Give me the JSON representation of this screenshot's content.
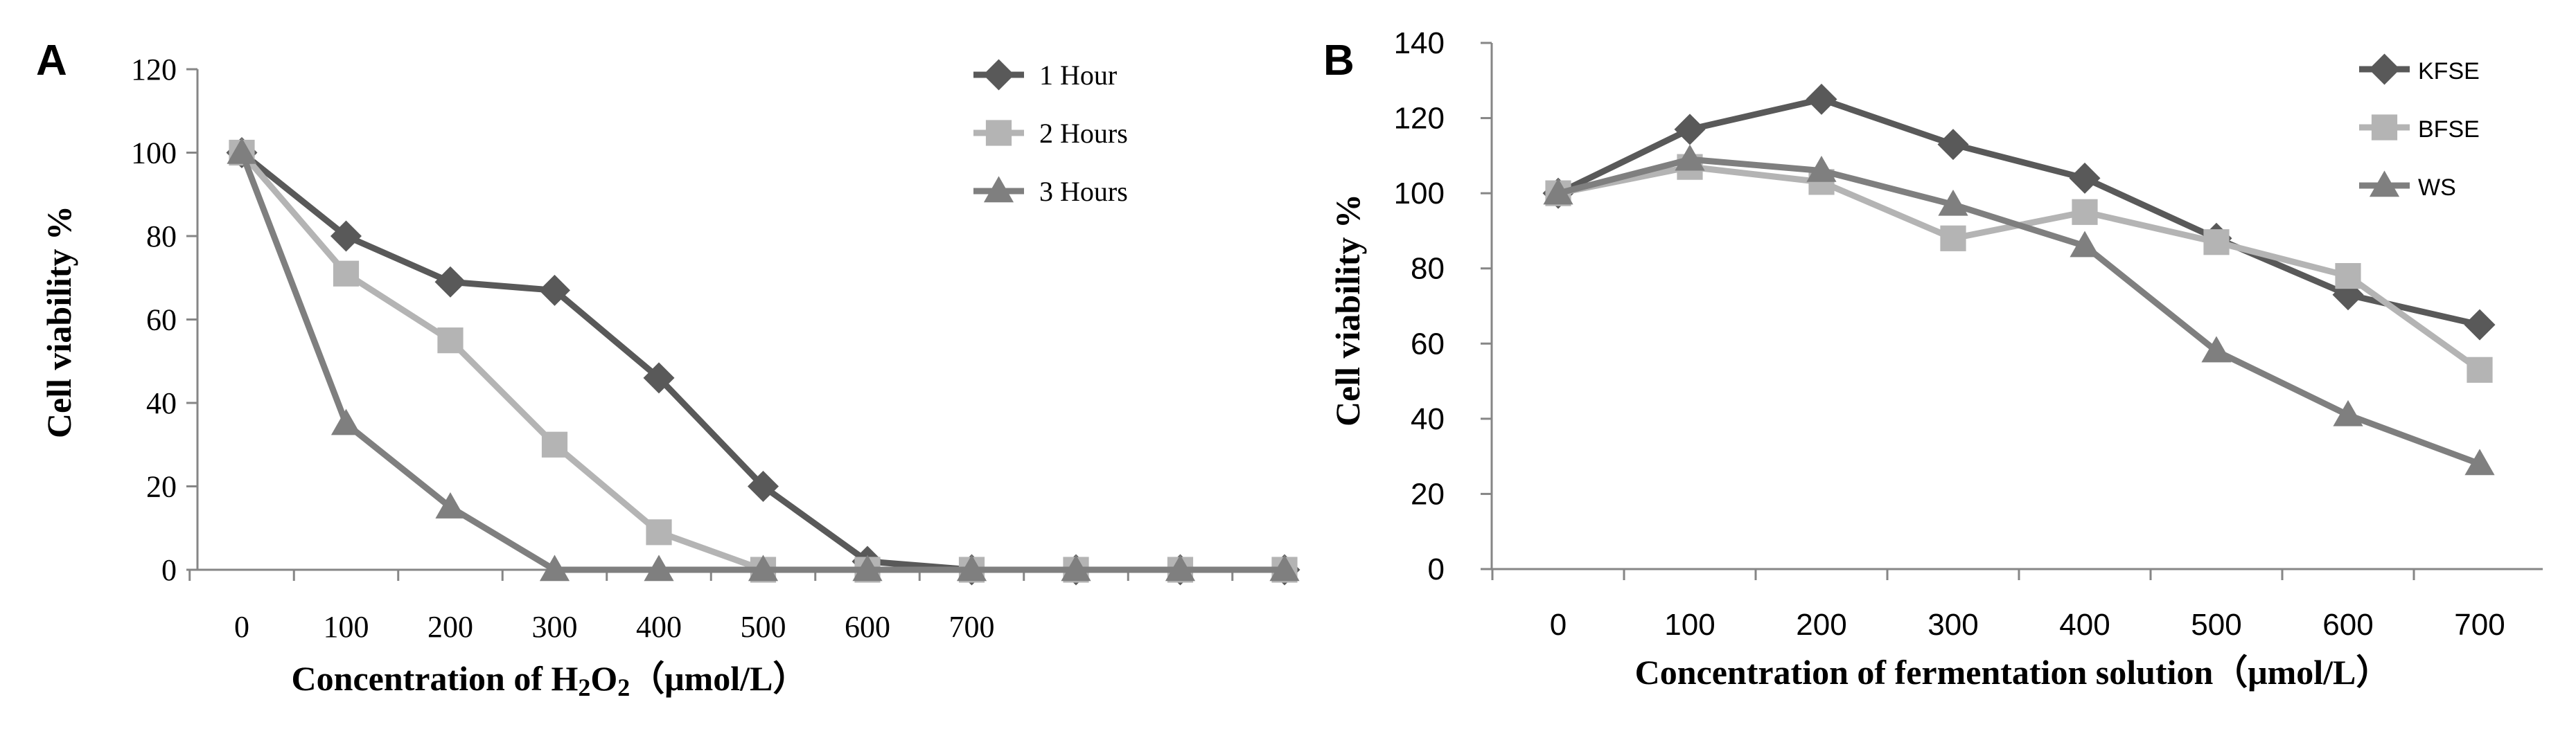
{
  "chart_data": [
    {
      "panel": "A",
      "type": "line",
      "categories": [
        "0",
        "100",
        "200",
        "300",
        "400",
        "500",
        "600",
        "700",
        "",
        "",
        ""
      ],
      "series": [
        {
          "name": "1 Hour",
          "marker": "diamond",
          "color": "#595959",
          "values": [
            100,
            80,
            69,
            67,
            46,
            20,
            2,
            0,
            0,
            0,
            0
          ]
        },
        {
          "name": "2 Hours",
          "marker": "square",
          "color": "#b4b4b4",
          "values": [
            100,
            71,
            55,
            30,
            9,
            0,
            0,
            0,
            0,
            0,
            0
          ]
        },
        {
          "name": "3 Hours",
          "marker": "triangle",
          "color": "#7f7f7f",
          "values": [
            100,
            35,
            15,
            0,
            0,
            0,
            0,
            0,
            0,
            0,
            0
          ]
        }
      ],
      "ylabel": "Cell viability %",
      "xlabel_parts": [
        "Concentration of H",
        "2",
        "O",
        "2",
        "（μmol/L）"
      ],
      "ylim": [
        0,
        120
      ],
      "yticks": [
        0,
        20,
        40,
        60,
        80,
        100,
        120
      ],
      "legend_position": "top-right",
      "grid": false
    },
    {
      "panel": "B",
      "type": "line",
      "categories": [
        "0",
        "100",
        "200",
        "300",
        "400",
        "500",
        "600",
        "700"
      ],
      "series": [
        {
          "name": "KFSE",
          "marker": "diamond",
          "color": "#595959",
          "values": [
            100,
            117,
            125,
            113,
            104,
            88,
            73,
            65
          ]
        },
        {
          "name": "BFSE",
          "marker": "square",
          "color": "#b4b4b4",
          "values": [
            100,
            107,
            103,
            88,
            95,
            87,
            78,
            53
          ]
        },
        {
          "name": "WS",
          "marker": "triangle",
          "color": "#7f7f7f",
          "values": [
            100,
            109,
            106,
            97,
            86,
            58,
            41,
            28
          ]
        }
      ],
      "ylabel": "Cell viability %",
      "xlabel": "Concentration of fermentation solution（μmol/L）",
      "ylim": [
        0,
        140
      ],
      "yticks": [
        0,
        20,
        40,
        60,
        80,
        100,
        120,
        140
      ],
      "legend_position": "top-right",
      "grid": false
    }
  ]
}
